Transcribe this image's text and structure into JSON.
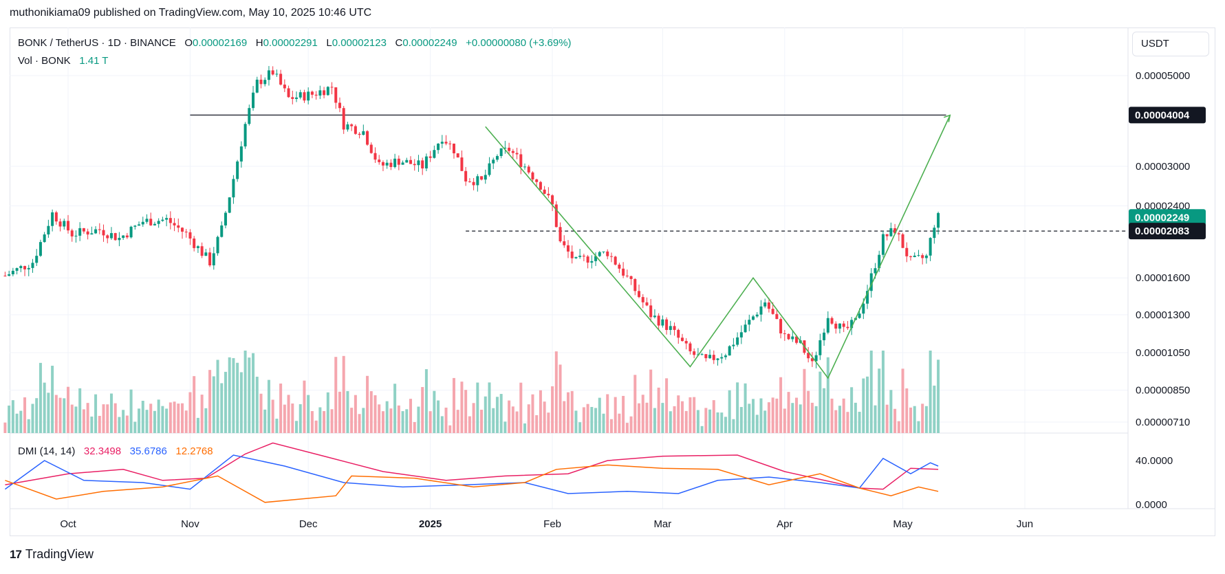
{
  "header": {
    "text": "muthonikiama09 published on TradingView.com, May 10, 2025 10:46 UTC"
  },
  "legend": {
    "symbol": "BONK / TetherUS · 1D · BINANCE",
    "o_label": "O",
    "o": "0.00002169",
    "h_label": "H",
    "h": "0.00002291",
    "l_label": "L",
    "l": "0.00002123",
    "c_label": "C",
    "c": "0.00002249",
    "change": "+0.00000080 (+3.69%)",
    "vol_label": "Vol · BONK",
    "vol": "1.41 T"
  },
  "dmi_legend": {
    "label": "DMI (14, 14)",
    "v1": "32.3498",
    "v2": "35.6786",
    "v3": "12.2768"
  },
  "currency": "USDT",
  "footer": {
    "brand": "TradingView",
    "logo": "17"
  },
  "colors": {
    "up": "#089981",
    "down": "#f23645",
    "vol_up": "#8fd1c5",
    "vol_down": "#f5a6ae",
    "pattern": "#4caf50",
    "adx": "#ff6d00",
    "di_plus": "#2962ff",
    "di_minus": "#e91e63"
  },
  "chart_data": [
    {
      "type": "candlestick",
      "title": "BONK / TetherUS · 1D · BINANCE",
      "scale": "log",
      "y_ticks": [
        "0.00005000",
        "0.00003000",
        "0.00002400",
        "0.00001600",
        "0.00001300",
        "0.00001050",
        "0.00000850",
        "0.00000710"
      ],
      "y_tick_values": [
        5e-05,
        3e-05,
        2.4e-05,
        1.6e-05,
        1.3e-05,
        1.05e-05,
        8.5e-06,
        7.1e-06
      ],
      "x_ticks": [
        "Oct",
        "Nov",
        "Dec",
        "2025",
        "Feb",
        "Mar",
        "Apr",
        "May",
        "Jun"
      ],
      "x_tick_dates": [
        "2024-10-01",
        "2024-11-01",
        "2024-12-01",
        "2025-01-01",
        "2025-02-01",
        "2025-03-01",
        "2025-04-01",
        "2025-05-01",
        "2025-06-01"
      ],
      "start_date": "2024-09-15",
      "end_date": "2025-05-10",
      "price_tags": [
        {
          "label": "0.00004004",
          "value": 4.004e-05,
          "style": "dark"
        },
        {
          "label": "0.00002249",
          "value": 2.249e-05,
          "style": "green"
        },
        {
          "label": "0.00002083",
          "value": 2.083e-05,
          "style": "dark"
        }
      ],
      "anchors": [
        [
          "2024-09-15",
          1.62e-05
        ],
        [
          "2024-09-22",
          1.75e-05
        ],
        [
          "2024-09-27",
          2.3e-05
        ],
        [
          "2024-10-02",
          2.05e-05
        ],
        [
          "2024-10-09",
          2.1e-05
        ],
        [
          "2024-10-14",
          2e-05
        ],
        [
          "2024-10-20",
          2.2e-05
        ],
        [
          "2024-10-26",
          2.22e-05
        ],
        [
          "2024-10-31",
          2.05e-05
        ],
        [
          "2024-11-06",
          1.75e-05
        ],
        [
          "2024-11-09",
          2.1e-05
        ],
        [
          "2024-11-12",
          2.8e-05
        ],
        [
          "2024-11-15",
          3.8e-05
        ],
        [
          "2024-11-18",
          4.8e-05
        ],
        [
          "2024-11-22",
          5.1e-05
        ],
        [
          "2024-11-26",
          4.4e-05
        ],
        [
          "2024-12-02",
          4.5e-05
        ],
        [
          "2024-12-07",
          4.7e-05
        ],
        [
          "2024-12-10",
          3.8e-05
        ],
        [
          "2024-12-15",
          3.65e-05
        ],
        [
          "2024-12-19",
          3e-05
        ],
        [
          "2024-12-24",
          3.1e-05
        ],
        [
          "2024-12-30",
          3e-05
        ],
        [
          "2025-01-04",
          3.55e-05
        ],
        [
          "2025-01-07",
          3.3e-05
        ],
        [
          "2025-01-10",
          2.8e-05
        ],
        [
          "2025-01-14",
          2.75e-05
        ],
        [
          "2025-01-18",
          3.2e-05
        ],
        [
          "2025-01-21",
          3.3e-05
        ],
        [
          "2025-01-25",
          3e-05
        ],
        [
          "2025-01-29",
          2.7e-05
        ],
        [
          "2025-02-01",
          2.4e-05
        ],
        [
          "2025-02-03",
          1.95e-05
        ],
        [
          "2025-02-07",
          1.75e-05
        ],
        [
          "2025-02-15",
          1.85e-05
        ],
        [
          "2025-02-20",
          1.6e-05
        ],
        [
          "2025-02-26",
          1.3e-05
        ],
        [
          "2025-03-03",
          1.2e-05
        ],
        [
          "2025-03-08",
          1.05e-05
        ],
        [
          "2025-03-12",
          1e-05
        ],
        [
          "2025-03-17",
          1.05e-05
        ],
        [
          "2025-03-23",
          1.25e-05
        ],
        [
          "2025-03-27",
          1.4e-05
        ],
        [
          "2025-04-01",
          1.15e-05
        ],
        [
          "2025-04-05",
          1.1e-05
        ],
        [
          "2025-04-08",
          9.8e-06
        ],
        [
          "2025-04-12",
          1.3e-05
        ],
        [
          "2025-04-16",
          1.18e-05
        ],
        [
          "2025-04-19",
          1.25e-05
        ],
        [
          "2025-04-22",
          1.5e-05
        ],
        [
          "2025-04-26",
          2e-05
        ],
        [
          "2025-04-29",
          2.1e-05
        ],
        [
          "2025-05-03",
          1.75e-05
        ],
        [
          "2025-05-07",
          1.8e-05
        ],
        [
          "2025-05-09",
          2.17e-05
        ],
        [
          "2025-05-10",
          2.25e-05
        ]
      ],
      "horizontal_levels": [
        {
          "value": 4.004e-05,
          "from": "2024-11-01",
          "to": "2025-05-12",
          "style": "solid"
        },
        {
          "value": 2.083e-05,
          "from": "2025-01-10",
          "to": "2025-06-30",
          "style": "dashed"
        }
      ],
      "pattern_line": [
        [
          "2025-01-15",
          3.75e-05
        ],
        [
          "2025-03-08",
          9.7e-06
        ],
        [
          "2025-03-24",
          1.6e-05
        ],
        [
          "2025-04-12",
          9.1e-06
        ],
        [
          "2025-05-13",
          4e-05
        ]
      ]
    },
    {
      "type": "bar",
      "title": "Vol · BONK",
      "last_value": "1.41 T",
      "note": "daily volume bars, colored by candle direction"
    },
    {
      "type": "line",
      "title": "DMI (14, 14)",
      "y_ticks": [
        "40.0000",
        "0.0000"
      ],
      "y_tick_values": [
        40,
        0
      ],
      "ylim": [
        -5,
        60
      ],
      "series": [
        {
          "name": "32.3498",
          "color": "#e91e63",
          "points": [
            [
              "2024-09-15",
              18
            ],
            [
              "2024-10-01",
              28
            ],
            [
              "2024-10-15",
              32
            ],
            [
              "2024-10-25",
              22
            ],
            [
              "2024-11-05",
              24
            ],
            [
              "2024-11-15",
              46
            ],
            [
              "2024-11-22",
              56
            ],
            [
              "2024-12-05",
              44
            ],
            [
              "2024-12-20",
              30
            ],
            [
              "2025-01-05",
              22
            ],
            [
              "2025-01-20",
              26
            ],
            [
              "2025-02-05",
              28
            ],
            [
              "2025-02-15",
              40
            ],
            [
              "2025-03-01",
              44
            ],
            [
              "2025-03-20",
              45
            ],
            [
              "2025-04-01",
              30
            ],
            [
              "2025-04-20",
              15
            ],
            [
              "2025-04-26",
              14
            ],
            [
              "2025-05-03",
              33
            ],
            [
              "2025-05-10",
              32
            ]
          ]
        },
        {
          "name": "35.6786",
          "color": "#2962ff",
          "points": [
            [
              "2024-09-15",
              14
            ],
            [
              "2024-09-25",
              40
            ],
            [
              "2024-10-05",
              22
            ],
            [
              "2024-10-20",
              20
            ],
            [
              "2024-11-01",
              14
            ],
            [
              "2024-11-12",
              45
            ],
            [
              "2024-11-25",
              35
            ],
            [
              "2024-12-10",
              20
            ],
            [
              "2024-12-25",
              16
            ],
            [
              "2025-01-10",
              18
            ],
            [
              "2025-01-25",
              20
            ],
            [
              "2025-02-05",
              10
            ],
            [
              "2025-02-20",
              12
            ],
            [
              "2025-03-05",
              10
            ],
            [
              "2025-03-15",
              22
            ],
            [
              "2025-03-28",
              25
            ],
            [
              "2025-04-10",
              20
            ],
            [
              "2025-04-20",
              15
            ],
            [
              "2025-04-26",
              42
            ],
            [
              "2025-05-03",
              28
            ],
            [
              "2025-05-08",
              38
            ],
            [
              "2025-05-10",
              35
            ]
          ]
        },
        {
          "name": "12.2768",
          "color": "#ff6d00",
          "points": [
            [
              "2024-09-15",
              22
            ],
            [
              "2024-09-28",
              5
            ],
            [
              "2024-10-10",
              12
            ],
            [
              "2024-10-25",
              16
            ],
            [
              "2024-11-08",
              26
            ],
            [
              "2024-11-20",
              2
            ],
            [
              "2024-12-08",
              8
            ],
            [
              "2024-12-12",
              26
            ],
            [
              "2024-12-28",
              24
            ],
            [
              "2025-01-12",
              16
            ],
            [
              "2025-01-25",
              20
            ],
            [
              "2025-02-02",
              32
            ],
            [
              "2025-02-15",
              36
            ],
            [
              "2025-03-01",
              33
            ],
            [
              "2025-03-15",
              32
            ],
            [
              "2025-03-28",
              18
            ],
            [
              "2025-04-10",
              28
            ],
            [
              "2025-04-20",
              15
            ],
            [
              "2025-04-28",
              8
            ],
            [
              "2025-05-05",
              16
            ],
            [
              "2025-05-10",
              12
            ]
          ]
        }
      ]
    }
  ]
}
